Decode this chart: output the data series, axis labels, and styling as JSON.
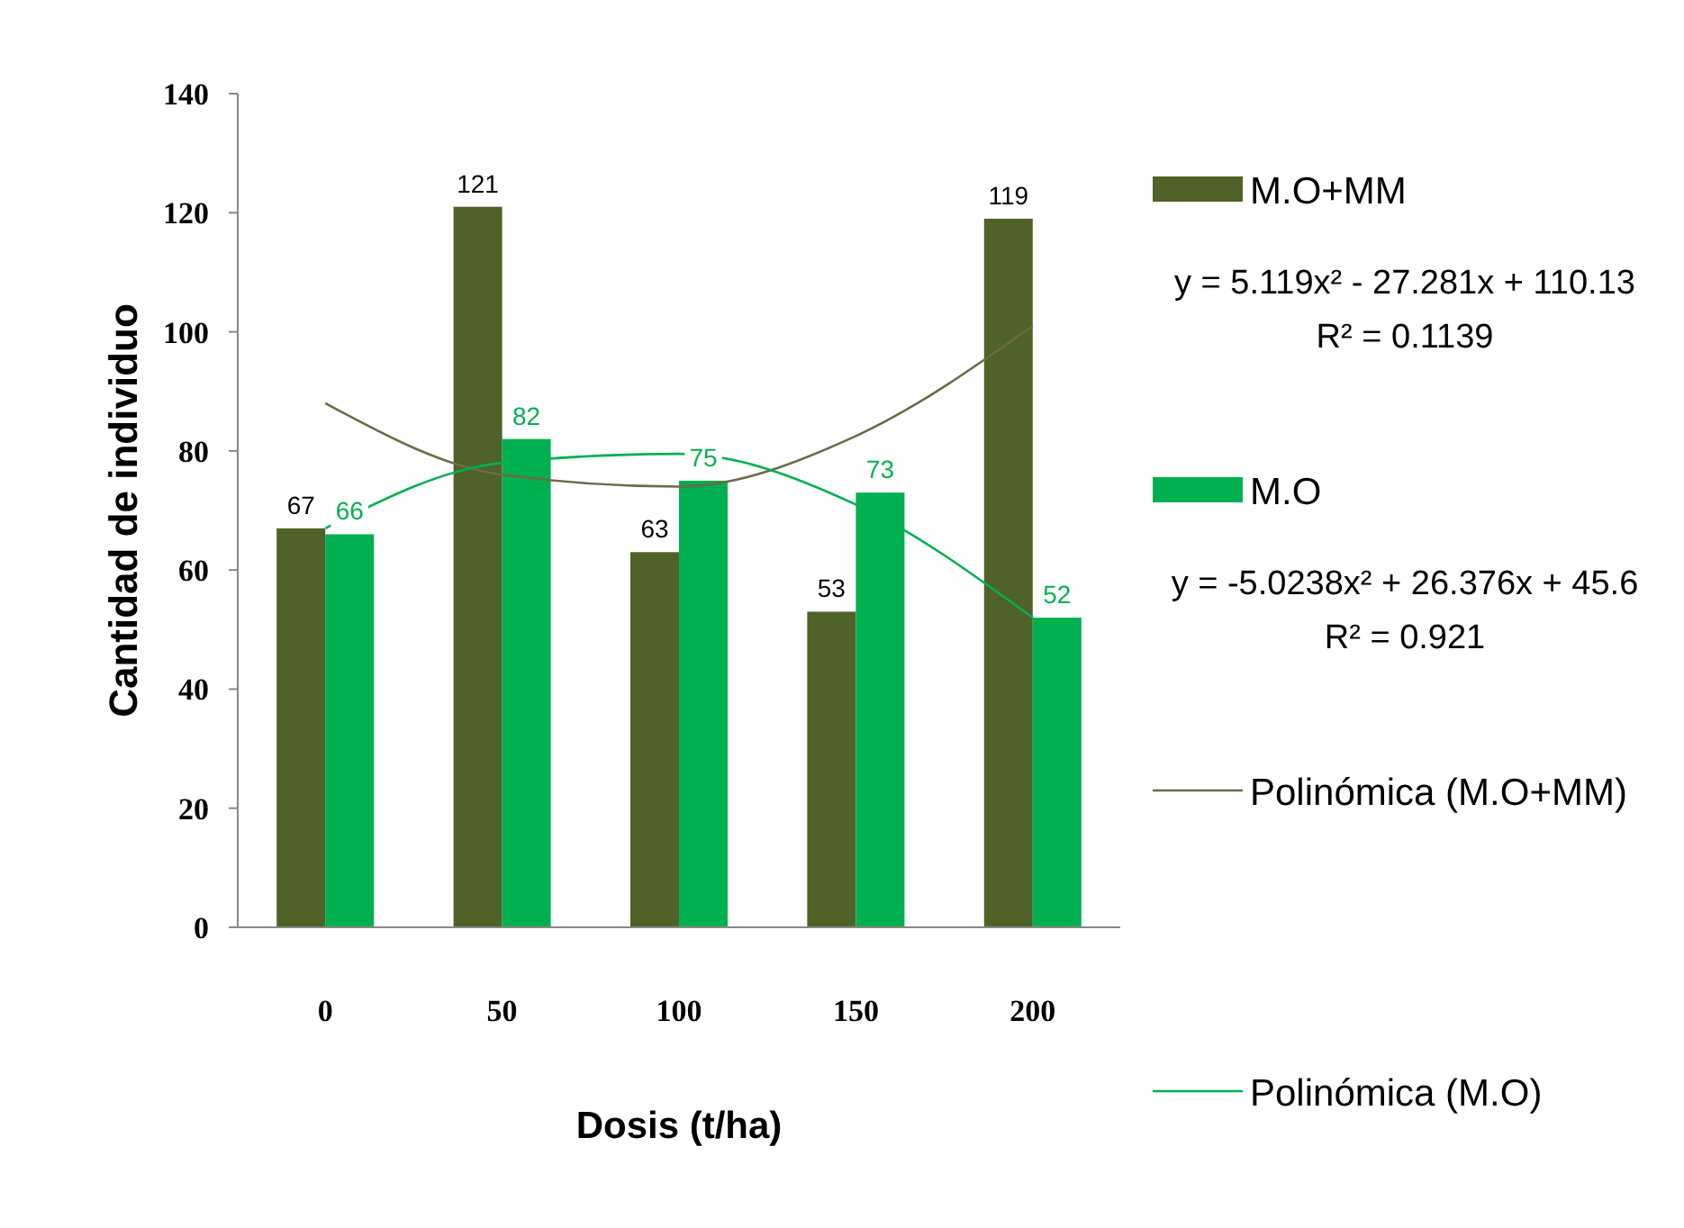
{
  "chart_data": {
    "type": "bar",
    "xlabel": "Dosis (t/ha)",
    "ylabel": "Cantidad de individuo",
    "categories": [
      "0",
      "50",
      "100",
      "150",
      "200"
    ],
    "series": [
      {
        "name": "M.O+MM",
        "color": "#4f6228",
        "values": [
          67,
          121,
          63,
          53,
          119
        ],
        "value_labels": [
          "67",
          "121",
          "63",
          "53",
          "119"
        ]
      },
      {
        "name": "M.O",
        "color": "#00b050",
        "values": [
          66,
          82,
          75,
          73,
          52
        ],
        "value_labels": [
          "66",
          "82",
          "75",
          "73",
          "52"
        ]
      },
      {
        "name": "Polinómica (M.O+MM)",
        "type": "line",
        "color": "#6e6a45",
        "x": [
          "0",
          "50",
          "100",
          "150",
          "200"
        ],
        "values": [
          88,
          76,
          74,
          82.5,
          101
        ]
      },
      {
        "name": "Polinómica (M.O)",
        "type": "line",
        "color": "#00b050",
        "x": [
          "0",
          "50",
          "100",
          "150",
          "200"
        ],
        "values": [
          67,
          78,
          79.5,
          71,
          52
        ]
      }
    ],
    "annotations": [
      "y = 5.119x² - 27.281x + 110.13",
      "R² = 0.1139",
      "y = -5.0238x² + 26.376x + 45.6",
      "R² = 0.921"
    ],
    "ylim": [
      0,
      140
    ],
    "yticks": [
      0,
      20,
      40,
      60,
      80,
      100,
      120,
      140
    ],
    "legend": "right",
    "grid": false
  }
}
